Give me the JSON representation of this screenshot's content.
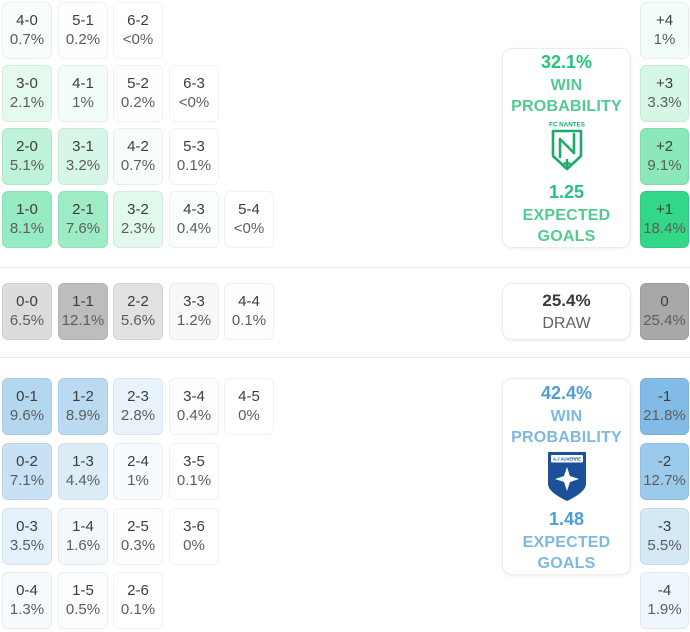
{
  "panels": {
    "home": {
      "probability": "32.1%",
      "label1": "WIN",
      "label2": "PROBABILITY",
      "team": "FC NANTES",
      "xg": "1.25",
      "xg1": "EXPECTED",
      "xg2": "GOALS",
      "strong_color": "#24c37d",
      "light_color": "#4fcc90",
      "logo_color": "#1fa96b"
    },
    "draw": {
      "probability": "25.4%",
      "label": "DRAW"
    },
    "away": {
      "probability": "42.4%",
      "label1": "WIN",
      "label2": "PROBABILITY",
      "team": "A.J AUXERRE",
      "xg": "1.48",
      "xg1": "EXPECTED",
      "xg2": "GOALS",
      "strong_color": "#4c9ed6",
      "light_color": "#7eb8e2",
      "logo_color": "#1c5199"
    }
  },
  "chart_data": {
    "type": "heatmap",
    "title": "Correct score and goal-difference probability matrix",
    "value_unit": "percent",
    "legend_position": "right",
    "sections": [
      {
        "name": "home-win",
        "team": "FC Nantes",
        "win_probability_pct": 32.1,
        "expected_goals": 1.25,
        "base_rgb": [
          50,
          215,
          135
        ],
        "rows": [
          [
            {
              "score": "4-0",
              "pct": "0.7%",
              "v": 0.7
            },
            {
              "score": "5-1",
              "pct": "0.2%",
              "v": 0.2
            },
            {
              "score": "6-2",
              "pct": "<0%",
              "v": 0
            }
          ],
          [
            {
              "score": "3-0",
              "pct": "2.1%",
              "v": 2.1
            },
            {
              "score": "4-1",
              "pct": "1%",
              "v": 1
            },
            {
              "score": "5-2",
              "pct": "0.2%",
              "v": 0.2
            },
            {
              "score": "6-3",
              "pct": "<0%",
              "v": 0
            }
          ],
          [
            {
              "score": "2-0",
              "pct": "5.1%",
              "v": 5.1
            },
            {
              "score": "3-1",
              "pct": "3.2%",
              "v": 3.2
            },
            {
              "score": "4-2",
              "pct": "0.7%",
              "v": 0.7
            },
            {
              "score": "5-3",
              "pct": "0.1%",
              "v": 0.1
            }
          ],
          [
            {
              "score": "1-0",
              "pct": "8.1%",
              "v": 8.1
            },
            {
              "score": "2-1",
              "pct": "7.6%",
              "v": 7.6
            },
            {
              "score": "3-2",
              "pct": "2.3%",
              "v": 2.3
            },
            {
              "score": "4-3",
              "pct": "0.4%",
              "v": 0.4
            },
            {
              "score": "5-4",
              "pct": "<0%",
              "v": 0
            }
          ]
        ],
        "diff": [
          {
            "label": "+4",
            "pct": "1%",
            "v": 1
          },
          {
            "label": "+3",
            "pct": "3.3%",
            "v": 3.3
          },
          {
            "label": "+2",
            "pct": "9.1%",
            "v": 9.1
          },
          {
            "label": "+1",
            "pct": "18.4%",
            "v": 18.4
          }
        ]
      },
      {
        "name": "draw",
        "draw_probability_pct": 25.4,
        "base_rgb": [
          168,
          168,
          168
        ],
        "rows": [
          [
            {
              "score": "0-0",
              "pct": "6.5%",
              "v": 6.5
            },
            {
              "score": "1-1",
              "pct": "12.1%",
              "v": 12.1
            },
            {
              "score": "2-2",
              "pct": "5.6%",
              "v": 5.6
            },
            {
              "score": "3-3",
              "pct": "1.2%",
              "v": 1.2
            },
            {
              "score": "4-4",
              "pct": "0.1%",
              "v": 0.1
            }
          ]
        ],
        "diff": [
          {
            "label": "0",
            "pct": "25.4%",
            "v": 25.4
          }
        ]
      },
      {
        "name": "away-win",
        "team": "AJ Auxerre",
        "win_probability_pct": 42.4,
        "expected_goals": 1.48,
        "base_rgb": [
          130,
          188,
          230
        ],
        "rows": [
          [
            {
              "score": "0-1",
              "pct": "9.6%",
              "v": 9.6
            },
            {
              "score": "1-2",
              "pct": "8.9%",
              "v": 8.9
            },
            {
              "score": "2-3",
              "pct": "2.8%",
              "v": 2.8
            },
            {
              "score": "3-4",
              "pct": "0.4%",
              "v": 0.4
            },
            {
              "score": "4-5",
              "pct": "0%",
              "v": 0
            }
          ],
          [
            {
              "score": "0-2",
              "pct": "7.1%",
              "v": 7.1
            },
            {
              "score": "1-3",
              "pct": "4.4%",
              "v": 4.4
            },
            {
              "score": "2-4",
              "pct": "1%",
              "v": 1
            },
            {
              "score": "3-5",
              "pct": "0.1%",
              "v": 0.1
            }
          ],
          [
            {
              "score": "0-3",
              "pct": "3.5%",
              "v": 3.5
            },
            {
              "score": "1-4",
              "pct": "1.6%",
              "v": 1.6
            },
            {
              "score": "2-5",
              "pct": "0.3%",
              "v": 0.3
            },
            {
              "score": "3-6",
              "pct": "0%",
              "v": 0
            }
          ],
          [
            {
              "score": "0-4",
              "pct": "1.3%",
              "v": 1.3
            },
            {
              "score": "1-5",
              "pct": "0.5%",
              "v": 0.5
            },
            {
              "score": "2-6",
              "pct": "0.1%",
              "v": 0.1
            }
          ]
        ],
        "diff": [
          {
            "label": "-1",
            "pct": "21.8%",
            "v": 21.8
          },
          {
            "label": "-2",
            "pct": "12.7%",
            "v": 12.7
          },
          {
            "label": "-3",
            "pct": "5.5%",
            "v": 5.5
          },
          {
            "label": "-4",
            "pct": "1.9%",
            "v": 1.9
          }
        ]
      }
    ]
  }
}
